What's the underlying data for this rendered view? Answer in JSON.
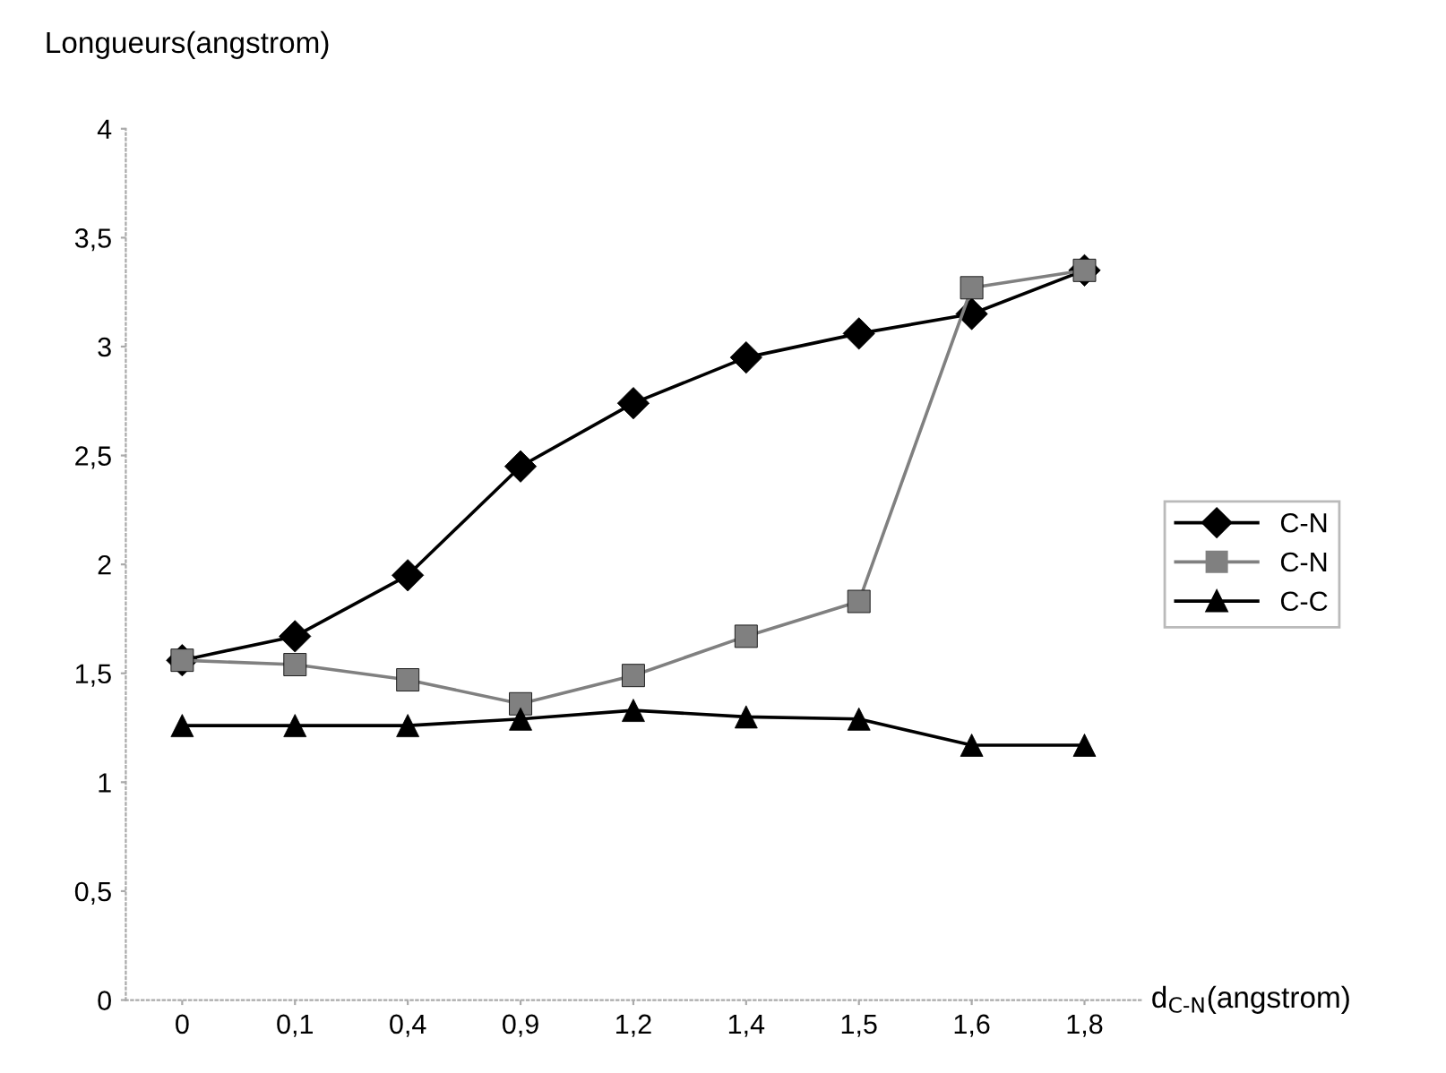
{
  "chart_data": {
    "type": "line",
    "ylabel": "Longueurs(angstrom)",
    "xlabel": "d$_{C-N}$(angstrom)",
    "categories": [
      "0",
      "0,1",
      "0,4",
      "0,9",
      "1,2",
      "1,4",
      "1,5",
      "1,6",
      "1,8"
    ],
    "series": [
      {
        "name": "C-N",
        "color": "#000000",
        "marker": "diamond",
        "values": [
          1.56,
          1.67,
          1.95,
          2.45,
          2.74,
          2.95,
          3.06,
          3.15,
          3.35
        ]
      },
      {
        "name": "C-N",
        "color": "#808080",
        "marker": "square",
        "values": [
          1.56,
          1.54,
          1.47,
          1.36,
          1.49,
          1.67,
          1.83,
          3.27,
          3.35
        ]
      },
      {
        "name": "C-C",
        "color": "#000000",
        "marker": "triangle",
        "values": [
          1.26,
          1.26,
          1.26,
          1.29,
          1.33,
          1.3,
          1.29,
          1.17,
          1.17
        ]
      }
    ],
    "ylim": [
      0,
      4
    ],
    "yticks": [
      {
        "value": 0,
        "label": "0"
      },
      {
        "value": 0.5,
        "label": "0,5"
      },
      {
        "value": 1,
        "label": "1"
      },
      {
        "value": 1.5,
        "label": "1,5"
      },
      {
        "value": 2,
        "label": "2"
      },
      {
        "value": 2.5,
        "label": "2,5"
      },
      {
        "value": 3,
        "label": "3"
      },
      {
        "value": 3.5,
        "label": "3,5"
      },
      {
        "value": 4,
        "label": "4"
      }
    ],
    "grid": false,
    "legend": "right",
    "line_style": "solid"
  }
}
